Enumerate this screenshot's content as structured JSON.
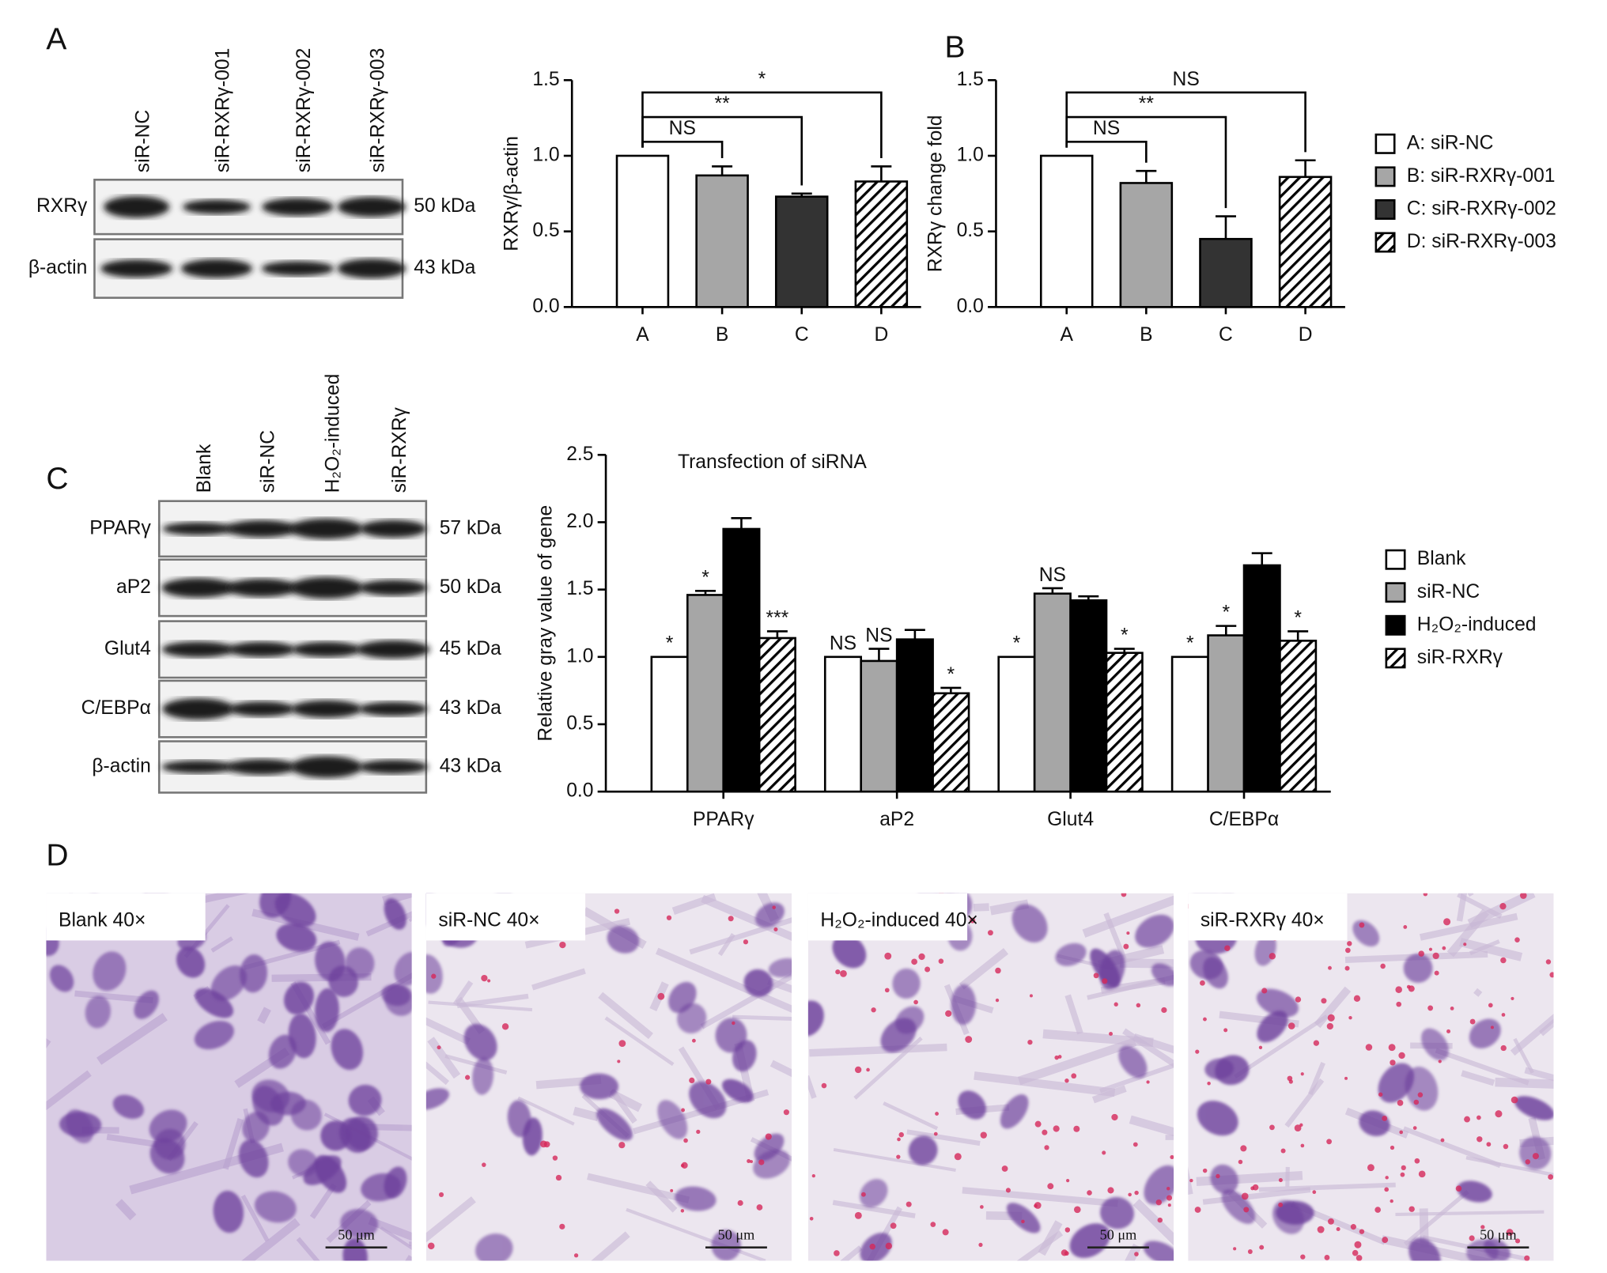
{
  "panel_labels": [
    "A",
    "B",
    "C",
    "D"
  ],
  "blots": [
    {
      "lanes": [
        "siR-NC",
        "siR-RXRγ-001",
        "siR-RXRγ-002",
        "siR-RXRγ-003"
      ],
      "rows": [
        {
          "label": "RXRγ",
          "size": "50 kDa"
        },
        {
          "label": "β-actin",
          "size": "43 kDa"
        }
      ]
    },
    {
      "lanes": [
        "Blank",
        "siR-NC",
        "H₂O₂-induced",
        "siR-RXRγ"
      ],
      "rows": [
        {
          "label": "PPARγ",
          "size": "57 kDa"
        },
        {
          "label": "aP2",
          "size": "50 kDa"
        },
        {
          "label": "Glut4",
          "size": "45 kDa"
        },
        {
          "label": "C/EBPα",
          "size": "43 kDa"
        },
        {
          "label": "β-actin",
          "size": "43 kDa"
        }
      ]
    }
  ],
  "micrographs": [
    {
      "label": "Blank 40×",
      "scale": "50 μm"
    },
    {
      "label": "siR-NC 40×",
      "scale": "50 μm"
    },
    {
      "label": "H₂O₂-induced 40×",
      "scale": "50 μm"
    },
    {
      "label": "siR-RXRγ  40×",
      "scale": "50 μm"
    }
  ],
  "chart_data": [
    {
      "type": "bar",
      "y_label": "RXRγ/β-actin",
      "categories": [
        "A",
        "B",
        "C",
        "D"
      ],
      "values": [
        1.0,
        0.87,
        0.73,
        0.83
      ],
      "errors": [
        0,
        0.06,
        0.02,
        0.1
      ],
      "bar_styles": [
        {
          "color": "#ffffff"
        },
        {
          "color": "#a6a6a6"
        },
        {
          "color": "#333333"
        },
        {
          "color": "#ffffff",
          "hatch": true
        }
      ],
      "comparisons": [
        {
          "label": "NS"
        },
        {
          "label": "**"
        },
        {
          "label": "*"
        }
      ],
      "ylim": [
        0,
        1.5
      ],
      "yticks": [
        {
          "value": 0,
          "label": "0.0"
        },
        0.5,
        {
          "value": 1,
          "label": "1.0"
        },
        1.5
      ]
    },
    {
      "type": "bar",
      "y_label": "RXRγ change fold",
      "categories": [
        "A",
        "B",
        "C",
        "D"
      ],
      "values": [
        1.0,
        0.82,
        0.45,
        0.86
      ],
      "errors": [
        0,
        0.08,
        0.15,
        0.11
      ],
      "bar_styles": [
        {
          "color": "#ffffff"
        },
        {
          "color": "#a6a6a6"
        },
        {
          "color": "#333333"
        },
        {
          "color": "#ffffff",
          "hatch": true
        }
      ],
      "legend": [
        "A: siR-NC",
        "B: siR-RXRγ-001",
        "C: siR-RXRγ-002",
        "D: siR-RXRγ-003"
      ],
      "comparisons": [
        {
          "label": "NS"
        },
        {
          "label": "**"
        },
        {
          "label": "NS"
        }
      ],
      "ylim": [
        0,
        1.5
      ],
      "yticks": [
        {
          "value": 0,
          "label": "0.0"
        },
        0.5,
        {
          "value": 1,
          "label": "1.0"
        },
        1.5
      ]
    },
    {
      "type": "bar",
      "title": "Transfection of siRNA",
      "y_label": "Relative gray value of gene",
      "categories": [
        "PPARγ",
        "aP2",
        "Glut4",
        "C/EBPα"
      ],
      "series": [
        {
          "name": "Blank",
          "color": "#ffffff",
          "values": [
            1,
            1,
            1,
            1
          ],
          "errors": [
            0,
            0,
            0,
            0
          ],
          "value_labels": [
            "*",
            "NS",
            "*",
            "*"
          ]
        },
        {
          "name": "siR-NC",
          "color": "#a6a6a6",
          "values": [
            1.46,
            0.97,
            1.47,
            1.16
          ],
          "errors": [
            0.03,
            0.09,
            0.04,
            0.07
          ],
          "value_labels": [
            "*",
            "NS",
            "NS",
            "*"
          ]
        },
        {
          "name": "H₂O₂-induced",
          "color": "#000000",
          "values": [
            1.95,
            1.13,
            1.42,
            1.68
          ],
          "errors": [
            0.08,
            0.07,
            0.03,
            0.09
          ],
          "value_labels": [
            null,
            null,
            null,
            null
          ]
        },
        {
          "name": "siR-RXRγ",
          "color": "#ffffff",
          "hatch": true,
          "values": [
            1.14,
            0.73,
            1.03,
            1.12
          ],
          "errors": [
            0.05,
            0.04,
            0.03,
            0.07
          ],
          "value_labels": [
            "***",
            "*",
            "*",
            "*"
          ]
        }
      ],
      "ylim": [
        0,
        2.5
      ],
      "yticks": [
        {
          "value": 0,
          "label": "0.0"
        },
        0.5,
        {
          "value": 1,
          "label": "1.0"
        },
        1.5,
        {
          "value": 2,
          "label": "2.0"
        },
        2.5
      ]
    }
  ]
}
